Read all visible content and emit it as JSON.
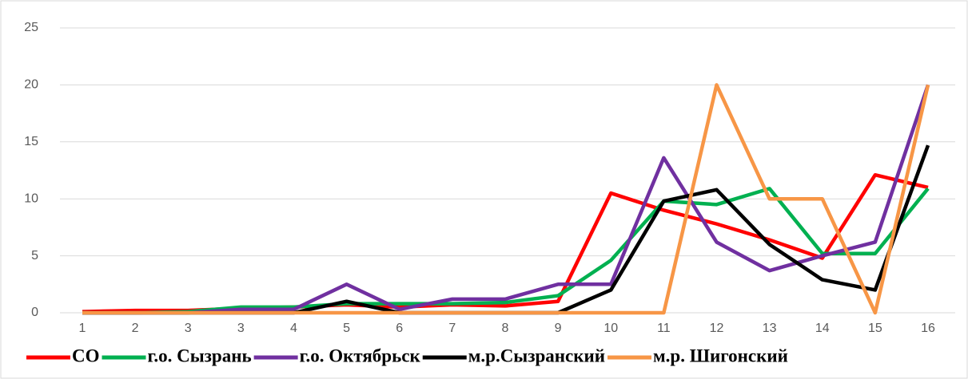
{
  "chart_data": {
    "type": "line",
    "categories": [
      "1",
      "2",
      "3",
      "3",
      "4",
      "5",
      "6",
      "7",
      "8",
      "9",
      "10",
      "11",
      "12",
      "13",
      "14",
      "15",
      "16"
    ],
    "series": [
      {
        "name": "СО",
        "color": "#ff0000",
        "values": [
          0.1,
          0.2,
          0.2,
          0.4,
          0.5,
          0.7,
          0.5,
          0.7,
          0.6,
          1.0,
          10.5,
          9.0,
          7.8,
          6.4,
          4.8,
          12.1,
          11.0
        ]
      },
      {
        "name": "г.о. Сызрань",
        "color": "#00b050",
        "values": [
          0,
          0,
          0.1,
          0.5,
          0.5,
          0.8,
          0.8,
          0.8,
          0.9,
          1.5,
          4.6,
          9.8,
          9.5,
          10.9,
          5.2,
          5.2,
          10.9
        ]
      },
      {
        "name": "г.о. Октябрьск",
        "color": "#7030a0",
        "values": [
          0,
          0,
          0,
          0.3,
          0.3,
          2.5,
          0.3,
          1.2,
          1.2,
          2.5,
          2.5,
          13.6,
          6.2,
          3.7,
          5.0,
          6.2,
          20
        ]
      },
      {
        "name": "м.р.Сызранский",
        "color": "#000000",
        "values": [
          0,
          0,
          0,
          0,
          0,
          1.0,
          0,
          0,
          0,
          0,
          2.0,
          9.8,
          10.8,
          6.0,
          2.9,
          2.0,
          14.7
        ]
      },
      {
        "name": "м.р. Шигонский",
        "color": "#f79646",
        "values": [
          0,
          0,
          0,
          0,
          0,
          0,
          0,
          0,
          0,
          0,
          0,
          0,
          20,
          10,
          10,
          0,
          20
        ]
      }
    ],
    "ylim": [
      0,
      25
    ],
    "yticks": [
      0,
      5,
      10,
      15,
      20,
      25
    ],
    "grid": true,
    "legend": "bottom"
  }
}
